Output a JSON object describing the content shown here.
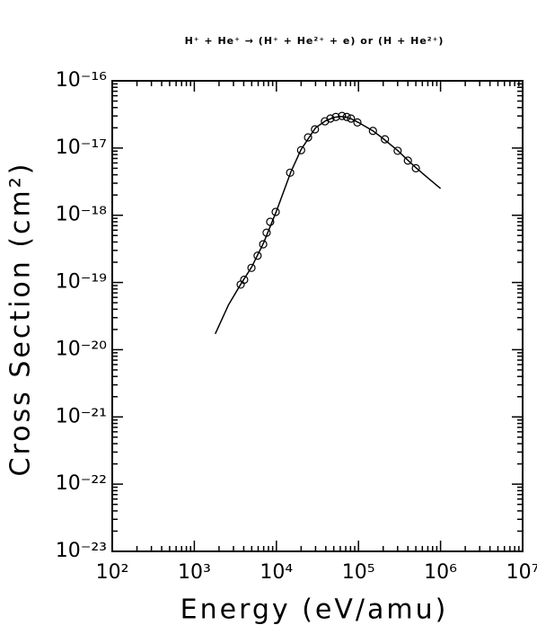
{
  "chart_data": {
    "type": "scatter",
    "title": "H⁺ + He⁺ → (H⁺ + He²⁺ + e) or (H + He²⁺)",
    "xlabel": "Energy (eV/amu)",
    "ylabel": "Cross Section (cm²)",
    "xscale": "log",
    "yscale": "log",
    "xlim": [
      100,
      10000000
    ],
    "ylim": [
      1e-23,
      1e-16
    ],
    "xticks": [
      {
        "value": 100,
        "label": "10²"
      },
      {
        "value": 1000,
        "label": "10³"
      },
      {
        "value": 10000,
        "label": "10⁴"
      },
      {
        "value": 100000,
        "label": "10⁵"
      },
      {
        "value": 1000000,
        "label": "10⁶"
      },
      {
        "value": 10000000,
        "label": "10⁷"
      }
    ],
    "yticks": [
      {
        "value": 1e-23,
        "label": "10⁻²³"
      },
      {
        "value": 1e-22,
        "label": "10⁻²²"
      },
      {
        "value": 1e-21,
        "label": "10⁻²¹"
      },
      {
        "value": 1e-20,
        "label": "10⁻²⁰"
      },
      {
        "value": 1e-19,
        "label": "10⁻¹⁹"
      },
      {
        "value": 1e-18,
        "label": "10⁻¹⁸"
      },
      {
        "value": 1e-17,
        "label": "10⁻¹⁷"
      },
      {
        "value": 1e-16,
        "label": "10⁻¹⁶"
      }
    ],
    "series": [
      {
        "style": "line",
        "color": "#000000",
        "x": [
          1800,
          2600,
          3700,
          5000,
          7000,
          10000,
          15000,
          20000,
          30000,
          40000,
          50000,
          60000,
          70000,
          80000,
          100000,
          150000,
          200000,
          300000,
          400000,
          500000,
          700000,
          1000000
        ],
        "values": [
          1.72e-20,
          4.6e-20,
          9.5e-20,
          1.7e-19,
          3.9e-19,
          1.15e-18,
          4.4e-18,
          9.5e-18,
          2e-17,
          2.55e-17,
          2.85e-17,
          2.95e-17,
          2.9e-17,
          2.75e-17,
          2.4e-17,
          1.8e-17,
          1.38e-17,
          9.2e-18,
          6.6e-18,
          5.1e-18,
          3.6e-18,
          2.5e-18
        ]
      },
      {
        "style": "marker",
        "color": "#000000",
        "x": [
          3670,
          4050,
          4970,
          5900,
          6900,
          7600,
          8400,
          9800,
          14700,
          20000,
          24300,
          29500,
          39000,
          45500,
          53000,
          63000,
          72000,
          81000,
          97000,
          150000,
          210000,
          300000,
          400000,
          500000
        ],
        "values": [
          9.3e-20,
          1.1e-19,
          1.65e-19,
          2.5e-19,
          3.7e-19,
          5.5e-19,
          8e-19,
          1.12e-18,
          4.3e-18,
          9.3e-18,
          1.44e-17,
          1.9e-17,
          2.5e-17,
          2.75e-17,
          2.9e-17,
          3e-17,
          2.9e-17,
          2.75e-17,
          2.4e-17,
          1.8e-17,
          1.35e-17,
          9.1e-18,
          6.5e-18,
          5e-18
        ]
      }
    ]
  }
}
